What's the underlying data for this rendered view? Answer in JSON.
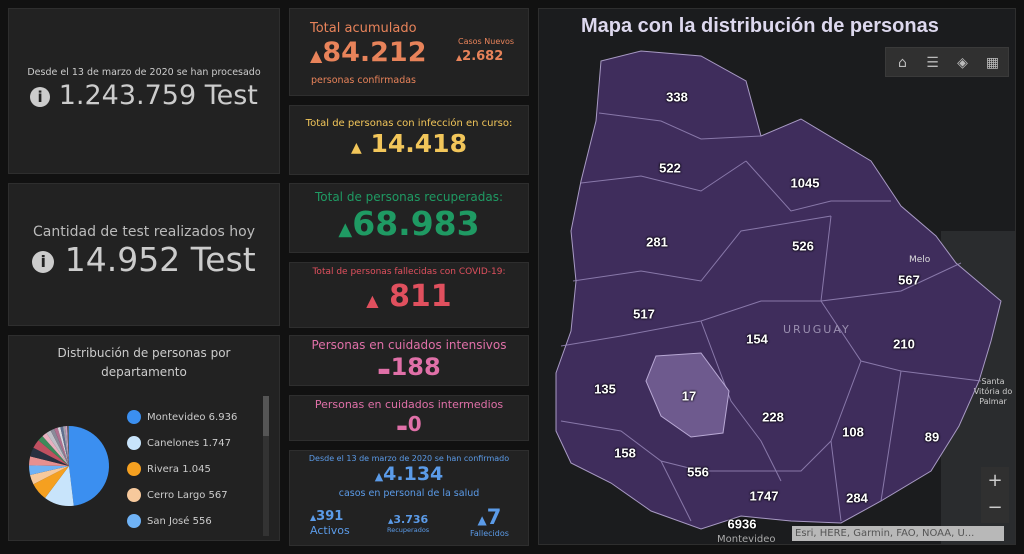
{
  "tests_total": {
    "caption": "Desde el 13 de marzo de 2020 se han procesado",
    "value": "1.243.759 Test"
  },
  "tests_today": {
    "caption": "Cantidad de test realizados hoy",
    "value": "14.952 Test"
  },
  "total": {
    "title": "Total acumulado",
    "value": "84.212",
    "sub": "personas confirmadas",
    "new_label": "Casos Nuevos",
    "new_value": "2.682",
    "color": "#e8835a"
  },
  "active": {
    "title": "Total de personas con infección en curso:",
    "value": "14.418",
    "color": "#f2c65a"
  },
  "recovered": {
    "title": "Total de personas recuperadas:",
    "value": "68.983",
    "color": "#1f9a63"
  },
  "deaths": {
    "title": "Total de personas fallecidas con COVID-19:",
    "value": "811",
    "color": "#e0505e"
  },
  "icu": {
    "title": "Personas en cuidados intensivos",
    "value": "188",
    "color": "#e070a8"
  },
  "intermediate": {
    "title": "Personas en cuidados intermedios",
    "value": "0",
    "color": "#e070a8"
  },
  "health": {
    "caption": "Desde el 13 de marzo de 2020 se han confirmado",
    "value": "4.134",
    "sub": "casos en personal de la salud",
    "active_value": "391",
    "active_label": "Activos",
    "recovered_value": "3.736",
    "recovered_label": "Recuperados",
    "deaths_value": "7",
    "deaths_label": "Fallecidos",
    "color": "#5b9be8"
  },
  "chart_data": {
    "type": "pie",
    "title": "Distribución de personas por departamento",
    "legend": [
      {
        "name": "Montevideo",
        "label": "6.936",
        "value": 6936,
        "color": "#3b8ff0"
      },
      {
        "name": "Canelones",
        "label": "1.747",
        "value": 1747,
        "color": "#c8e4fb"
      },
      {
        "name": "Rivera",
        "label": "1.045",
        "value": 1045,
        "color": "#f5a020"
      },
      {
        "name": "Cerro Largo",
        "label": "567",
        "value": 567,
        "color": "#f7c99c"
      },
      {
        "name": "San José",
        "label": "556",
        "value": 556,
        "color": "#6fb2f5"
      }
    ],
    "other_values": [
      522,
      526,
      517,
      338,
      284,
      281,
      228,
      210,
      158,
      154,
      135,
      108,
      89,
      17
    ],
    "other_colors": [
      "#e79090",
      "#2a3040",
      "#c05060",
      "#3d8a5a",
      "#e8b0c0",
      "#c0c0c8",
      "#8a8a99",
      "#b07090",
      "#d8d8e0",
      "#607090",
      "#a0a0b0",
      "#d0a0c0",
      "#506070",
      "#9090a0"
    ],
    "legend_placement": "right"
  },
  "map": {
    "title": "Mapa con la distribución de personas",
    "country_label": "URUGUAY",
    "places": [
      "Melo",
      "Santa Vitória do Palmar",
      "Montevideo"
    ],
    "attribution": "Esri, HERE, Garmin, FAO, NOAA, U...",
    "zoom_in": "+",
    "zoom_out": "−",
    "fill": "#3f2d5c",
    "departments": [
      "338",
      "522",
      "1045",
      "281",
      "526",
      "567",
      "517",
      "154",
      "210",
      "135",
      "17",
      "228",
      "108",
      "89",
      "158",
      "556",
      "1747",
      "284",
      "6936"
    ]
  }
}
